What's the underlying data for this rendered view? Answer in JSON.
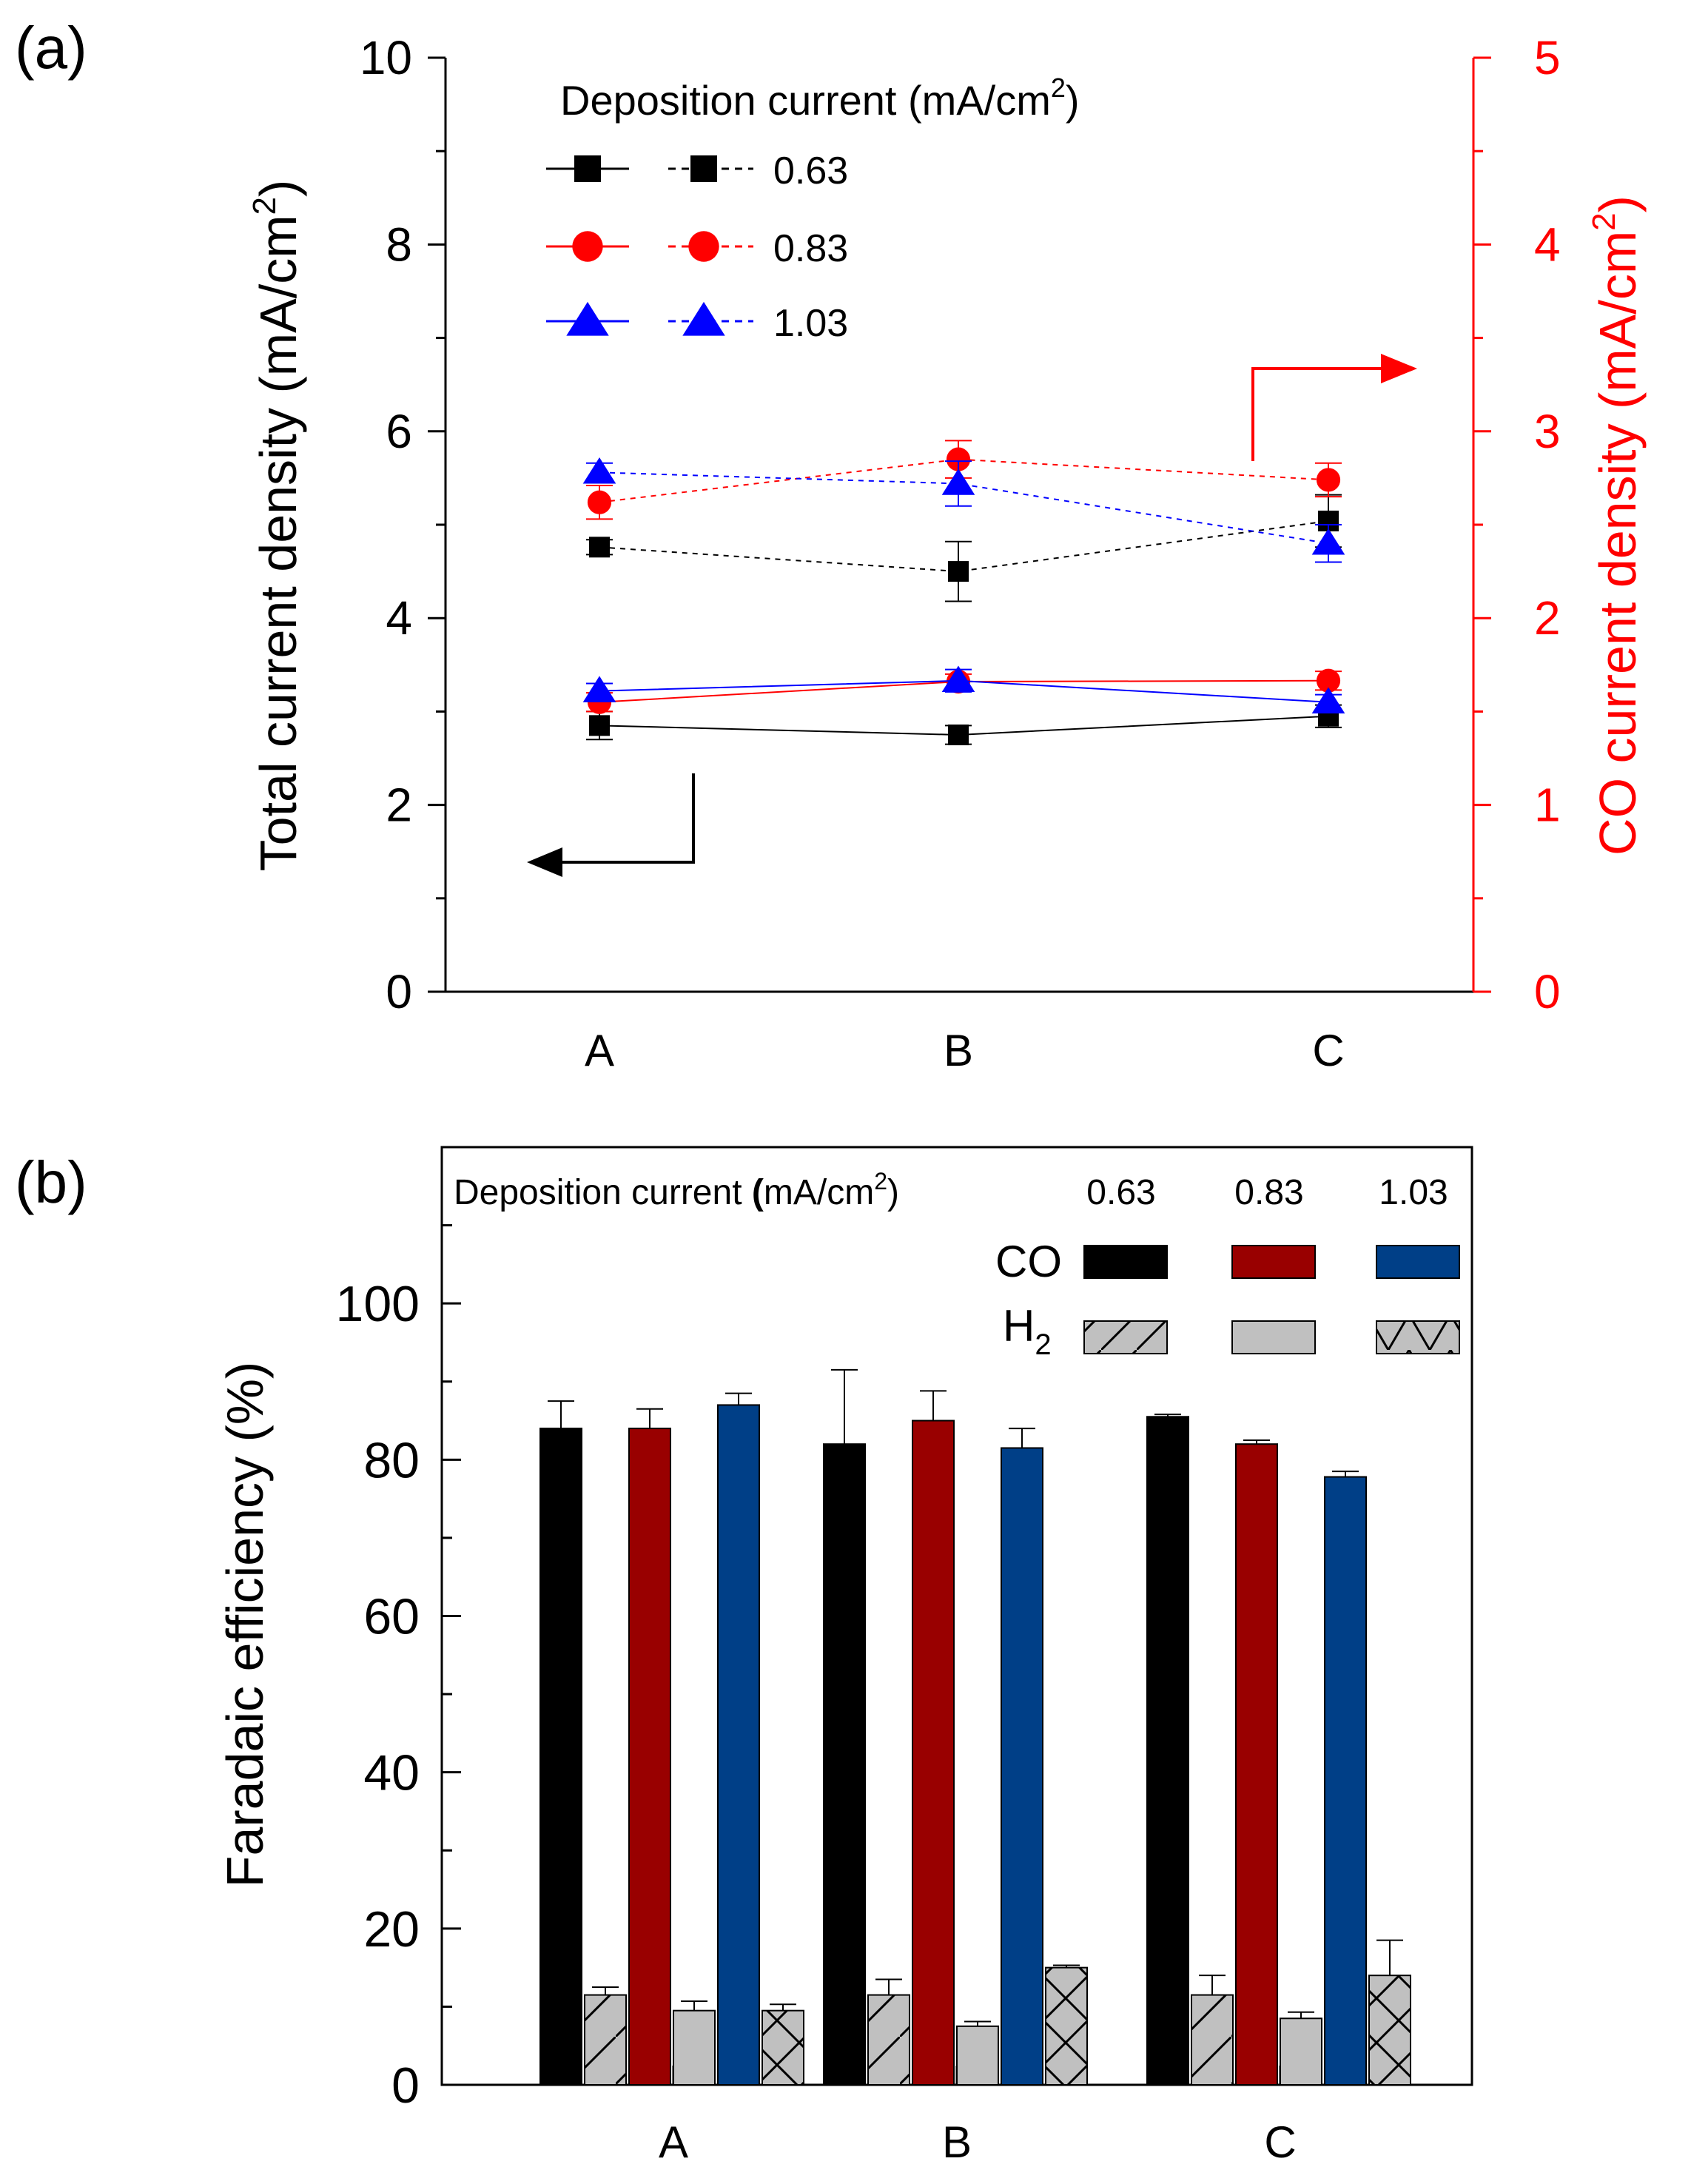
{
  "chart_data": [
    {
      "panel_label": "(a)",
      "type": "line",
      "categories": [
        "A",
        "B",
        "C"
      ],
      "left_axis": {
        "label": "Total current density (mA/cm",
        "label_sup": "2",
        "label_end": ")",
        "ylim": [
          0,
          10
        ],
        "major_ticks": [
          0,
          2,
          4,
          6,
          8,
          10
        ],
        "tick_labels": [
          "0",
          "2",
          "4",
          "6",
          "8",
          "10"
        ],
        "color": "#000000"
      },
      "right_axis": {
        "label": "CO current density (mA/cm",
        "label_sup": "2",
        "label_end": ")",
        "ylim": [
          0,
          5
        ],
        "major_ticks": [
          0,
          1,
          2,
          3,
          4,
          5
        ],
        "tick_labels": [
          "0",
          "1",
          "2",
          "3",
          "4",
          "5"
        ],
        "color": "#ff0000"
      },
      "legend": {
        "title": "Deposition current (mA/cm",
        "title_sup": "2",
        "title_end": ")",
        "placement": "top-left"
      },
      "series": [
        {
          "name": "0.63",
          "axis": "left",
          "line": "solid",
          "color": "#000000",
          "marker": "square",
          "values": [
            2.85,
            2.75,
            2.95
          ],
          "errors": [
            0.15,
            0.1,
            0.12
          ]
        },
        {
          "name": "0.83",
          "axis": "left",
          "line": "solid",
          "color": "#ff0000",
          "marker": "circle",
          "values": [
            3.1,
            3.32,
            3.33
          ],
          "errors": [
            0.1,
            0.08,
            0.1
          ]
        },
        {
          "name": "1.03",
          "axis": "left",
          "line": "solid",
          "color": "#0000ff",
          "marker": "triangle",
          "values": [
            3.22,
            3.33,
            3.1
          ],
          "errors": [
            0.08,
            0.12,
            0.08
          ]
        },
        {
          "name": "0.63",
          "axis": "right",
          "line": "dashed",
          "color": "#000000",
          "marker": "square",
          "values": [
            2.38,
            2.25,
            2.52
          ],
          "errors": [
            0.04,
            0.16,
            0.14
          ]
        },
        {
          "name": "0.83",
          "axis": "right",
          "line": "dashed",
          "color": "#ff0000",
          "marker": "circle",
          "values": [
            2.62,
            2.85,
            2.74
          ],
          "errors": [
            0.09,
            0.1,
            0.09
          ]
        },
        {
          "name": "1.03",
          "axis": "right",
          "line": "dashed",
          "color": "#0000ff",
          "marker": "triangle",
          "values": [
            2.78,
            2.72,
            2.4
          ],
          "errors": [
            0.05,
            0.12,
            0.1
          ]
        }
      ]
    },
    {
      "panel_label": "(b)",
      "type": "bar",
      "categories": [
        "A",
        "B",
        "C"
      ],
      "ylabel": "Faradaic efficiency (%)",
      "ylim": [
        0,
        120
      ],
      "major_ticks": [
        0,
        20,
        40,
        60,
        80,
        100
      ],
      "tick_labels": [
        "0",
        "20",
        "40",
        "60",
        "80",
        "100"
      ],
      "legend": {
        "title": "Deposition current ",
        "title_bold": "(",
        "title_units": "mA/cm",
        "title_sup": "2",
        "title_end": ")",
        "columns": [
          "0.63",
          "0.83",
          "1.03"
        ],
        "row_co": "CO",
        "row_h2": "H",
        "row_h2_sub": "2",
        "placement": "top-right"
      },
      "series": [
        {
          "name": "CO 0.63",
          "product": "CO",
          "deposition": "0.63",
          "color": "#000000",
          "pattern": "none",
          "values": [
            84,
            82,
            85.5
          ],
          "errors": [
            3.5,
            9.5,
            0.3
          ]
        },
        {
          "name": "H2 0.63",
          "product": "H2",
          "deposition": "0.63",
          "color": "#c0c0c0",
          "pattern": "slash",
          "values": [
            11.5,
            11.5,
            11.5
          ],
          "errors": [
            1,
            2,
            2.5
          ]
        },
        {
          "name": "CO 0.83",
          "product": "CO",
          "deposition": "0.83",
          "color": "#990000",
          "pattern": "none",
          "values": [
            84,
            85,
            82
          ],
          "errors": [
            2.5,
            3.8,
            0.5
          ]
        },
        {
          "name": "H2 0.83",
          "product": "H2",
          "deposition": "0.83",
          "color": "#c0c0c0",
          "pattern": "none",
          "values": [
            9.5,
            7.5,
            8.5
          ],
          "errors": [
            1.2,
            0.6,
            0.8
          ]
        },
        {
          "name": "CO 1.03",
          "product": "CO",
          "deposition": "1.03",
          "color": "#003f87",
          "pattern": "none",
          "values": [
            87,
            81.5,
            77.8
          ],
          "errors": [
            1.5,
            2.5,
            0.7
          ]
        },
        {
          "name": "H2 1.03",
          "product": "H2",
          "deposition": "1.03",
          "color": "#c0c0c0",
          "pattern": "cross",
          "values": [
            9.5,
            15,
            14
          ],
          "errors": [
            0.8,
            0.3,
            4.5
          ]
        }
      ]
    }
  ]
}
